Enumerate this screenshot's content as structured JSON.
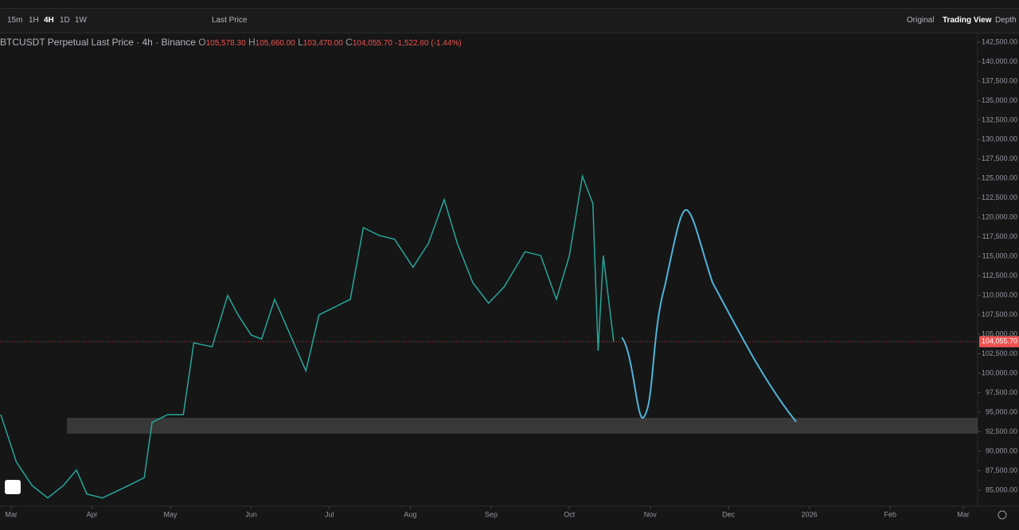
{
  "toolbar": {
    "intervals": [
      "15m",
      "1H",
      "4H",
      "1D",
      "1W"
    ],
    "price_mode": "Last Price",
    "views": [
      "Original",
      "Trading View",
      "Depth"
    ]
  },
  "legend": {
    "symbol": "BTCUSDT Perpetual Last Price · 4h · Binance",
    "ohlc": [
      {
        "key": "O",
        "label": "105,578.30"
      },
      {
        "key": "H",
        "label": "105,660.00"
      },
      {
        "key": "L",
        "label": "103,470.00"
      },
      {
        "key": "C",
        "label": "104,055.70"
      }
    ],
    "change": "-1,522.60 (-1.44%)"
  },
  "chart_data": {
    "type": "line",
    "xlim": [
      55.7,
      430.5
    ],
    "ylim": [
      82950,
      143725
    ],
    "xticks": [
      {
        "value": 60,
        "label": "Mar"
      },
      {
        "value": 91,
        "label": "Apr"
      },
      {
        "value": 121,
        "label": "May"
      },
      {
        "value": 152,
        "label": "Jun"
      },
      {
        "value": 182,
        "label": "Jul"
      },
      {
        "value": 213,
        "label": "Aug"
      },
      {
        "value": 244,
        "label": "Sep"
      },
      {
        "value": 274,
        "label": "Oct"
      },
      {
        "value": 305,
        "label": "Nov"
      },
      {
        "value": 335,
        "label": "Dec"
      },
      {
        "value": 366,
        "label": "2026"
      },
      {
        "value": 397,
        "label": "Feb"
      },
      {
        "value": 425,
        "label": "Mar"
      }
    ],
    "yticks": [
      {
        "value": 85000,
        "label": "85,000.00"
      },
      {
        "value": 87500,
        "label": "87,500.00"
      },
      {
        "value": 90000,
        "label": "90,000.00"
      },
      {
        "value": 92500,
        "label": "92,500.00"
      },
      {
        "value": 95000,
        "label": "95,000.00"
      },
      {
        "value": 97500,
        "label": "97,500.00"
      },
      {
        "value": 100000,
        "label": "100,000.00"
      },
      {
        "value": 102500,
        "label": "102,500.00"
      },
      {
        "value": 105000,
        "label": "105,000.00"
      },
      {
        "value": 107500,
        "label": "107,500.00"
      },
      {
        "value": 110000,
        "label": "110,000.00"
      },
      {
        "value": 112500,
        "label": "112,500.00"
      },
      {
        "value": 115000,
        "label": "115,000.00"
      },
      {
        "value": 117500,
        "label": "117,500.00"
      },
      {
        "value": 120000,
        "label": "120,000.00"
      },
      {
        "value": 122500,
        "label": "122,500.00"
      },
      {
        "value": 125000,
        "label": "125,000.00"
      },
      {
        "value": 127500,
        "label": "127,500.00"
      },
      {
        "value": 130000,
        "label": "130,000.00"
      },
      {
        "value": 132500,
        "label": "132,500.00"
      },
      {
        "value": 135000,
        "label": "135,000.00"
      },
      {
        "value": 137500,
        "label": "137,500.00"
      },
      {
        "value": 140000,
        "label": "140,000.00"
      },
      {
        "value": 142500,
        "label": "142,500.00"
      }
    ],
    "last_price": {
      "value": 104055.7,
      "label": "104,055.70"
    },
    "series": [
      {
        "color": "#26a69a",
        "x": [
          56,
          62,
          68,
          74,
          80,
          85,
          89,
          95,
          105,
          111,
          114,
          120,
          126,
          130,
          137,
          143,
          147,
          152,
          156,
          161,
          167,
          173,
          178,
          184,
          190,
          195,
          201,
          207,
          214,
          220,
          226,
          231,
          237,
          243,
          249,
          257,
          263,
          269,
          274,
          279,
          283,
          285,
          287,
          291
        ],
        "values": [
          94700,
          88600,
          85600,
          84000,
          85600,
          87600,
          84500,
          84000,
          85600,
          86600,
          93700,
          94700,
          94700,
          103900,
          103400,
          110000,
          107500,
          104900,
          104400,
          109500,
          104900,
          100300,
          107500,
          108500,
          109500,
          118700,
          117700,
          117200,
          113600,
          116700,
          122300,
          116700,
          111600,
          109000,
          111100,
          115600,
          115100,
          109500,
          115100,
          125300,
          121800,
          102900,
          115100,
          104055.7
        ]
      }
    ]
  }
}
